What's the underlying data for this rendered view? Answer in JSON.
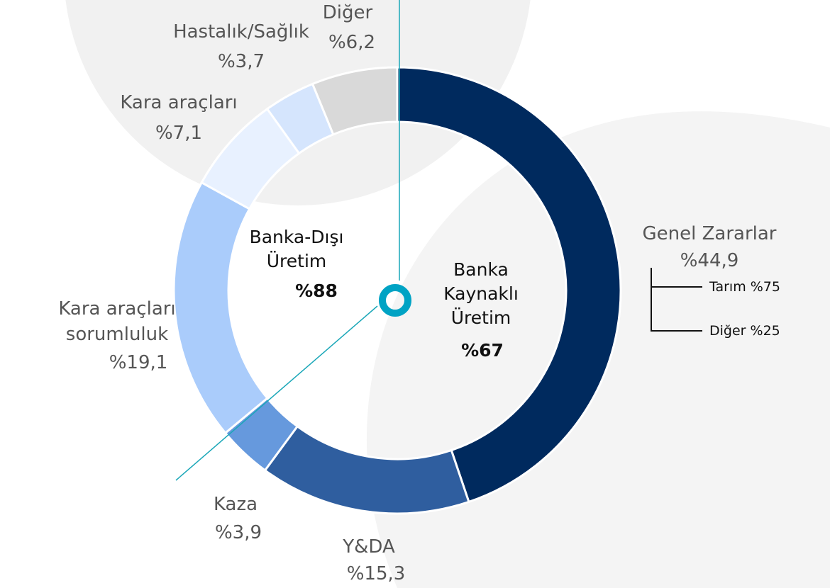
{
  "chart_data": {
    "type": "pie",
    "donut": true,
    "categories": [
      "Genel Zararlar",
      "Y&DA",
      "Kaza",
      "Kara araçları sorumluluk",
      "Kara araçları",
      "Hastalık/Sağlık",
      "Diğer"
    ],
    "values": [
      44.9,
      15.3,
      3.9,
      19.1,
      7.1,
      3.7,
      6.2
    ],
    "value_labels": [
      "%44,9",
      "%15,3",
      "%3,9",
      "%19,1",
      "%7,1",
      "%3,7",
      "%6,2"
    ],
    "colors": [
      "#002a5e",
      "#2f5e9f",
      "#6699dd",
      "#aaccfb",
      "#e8f1ff",
      "#d5e5fd",
      "#d9d9d9"
    ],
    "annotations": [
      {
        "text": "Banka-Dışı Üretim"
      },
      {
        "text": "%88"
      },
      {
        "text": "Banka Kaynaklı Üretim"
      },
      {
        "text": "%67"
      },
      {
        "text": "Tarım %75"
      },
      {
        "text": "Diğer %25"
      }
    ]
  }
}
